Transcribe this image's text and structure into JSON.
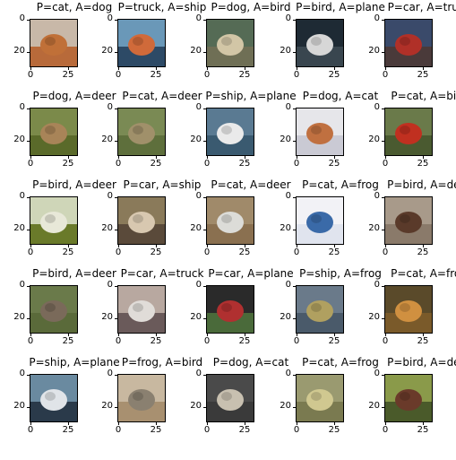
{
  "axis": {
    "yticks": [
      "0",
      "20"
    ],
    "xticks": [
      "0",
      "25"
    ]
  },
  "images": [
    {
      "title": "P=cat, A=dog",
      "sky": "#c8b8a8",
      "ground": "#b86a3a",
      "blob": "#c07038"
    },
    {
      "title": "P=truck, A=ship",
      "sky": "#6a98b8",
      "ground": "#2d4a66",
      "blob": "#d06a3a"
    },
    {
      "title": "P=dog, A=bird",
      "sky": "#556b55",
      "ground": "#6f6f55",
      "blob": "#d2c6a6"
    },
    {
      "title": "P=bird, A=plane",
      "sky": "#1e2a34",
      "ground": "#39464f",
      "blob": "#d7d7d7"
    },
    {
      "title": "P=car, A=truck",
      "sky": "#3a4a6a",
      "ground": "#4a3a3a",
      "blob": "#b03028"
    },
    {
      "title": "P=dog, A=deer",
      "sky": "#7b8a4a",
      "ground": "#5a6a2a",
      "blob": "#a88458"
    },
    {
      "title": "P=cat, A=deer",
      "sky": "#7a8a54",
      "ground": "#5e6f3c",
      "blob": "#a0906a"
    },
    {
      "title": "P=ship, A=plane",
      "sky": "#5a7a92",
      "ground": "#3a5a70",
      "blob": "#eaeaea"
    },
    {
      "title": "P=dog, A=cat",
      "sky": "#e6e6ea",
      "ground": "#cacad4",
      "blob": "#c07040"
    },
    {
      "title": "P=cat, A=bird",
      "sky": "#6a7a4a",
      "ground": "#4a5a30",
      "blob": "#c03020"
    },
    {
      "title": "P=bird, A=deer",
      "sky": "#cfd6b8",
      "ground": "#6a7a2a",
      "blob": "#e8e8d8"
    },
    {
      "title": "P=car, A=ship",
      "sky": "#8a7a5a",
      "ground": "#5a4a3a",
      "blob": "#d8c8b0"
    },
    {
      "title": "P=cat, A=deer",
      "sky": "#a08a6a",
      "ground": "#8a7050",
      "blob": "#dcdcd8"
    },
    {
      "title": "P=cat, A=frog",
      "sky": "#f2f2f6",
      "ground": "#e0e4ee",
      "blob": "#3a6aa8"
    },
    {
      "title": "P=bird, A=deer",
      "sky": "#a89a8a",
      "ground": "#8a7a6a",
      "blob": "#5a3a2a"
    },
    {
      "title": "P=bird, A=deer",
      "sky": "#6a7a4a",
      "ground": "#5a6a3a",
      "blob": "#7a6a5a"
    },
    {
      "title": "P=car, A=truck",
      "sky": "#b8a8a0",
      "ground": "#6a5a5a",
      "blob": "#e0dcd8"
    },
    {
      "title": "P=car, A=plane",
      "sky": "#2a2a2a",
      "ground": "#4a6a3a",
      "blob": "#b03030"
    },
    {
      "title": "P=ship, A=frog",
      "sky": "#6a7a8a",
      "ground": "#4a5a6a",
      "blob": "#b0a060"
    },
    {
      "title": "P=cat, A=frog",
      "sky": "#5a4a2a",
      "ground": "#7a5a2a",
      "blob": "#d09040"
    },
    {
      "title": "P=ship, A=plane",
      "sky": "#6a8aa0",
      "ground": "#2a3a4a",
      "blob": "#e0e4e8"
    },
    {
      "title": "P=frog, A=bird",
      "sky": "#c8b8a0",
      "ground": "#a89070",
      "blob": "#8a8070"
    },
    {
      "title": "P=dog, A=cat",
      "sky": "#4a4a4a",
      "ground": "#3a3a3a",
      "blob": "#c8c0b0"
    },
    {
      "title": "P=cat, A=frog",
      "sky": "#9a9a70",
      "ground": "#7a7a50",
      "blob": "#d0c890"
    },
    {
      "title": "P=bird, A=deer",
      "sky": "#8a9a4a",
      "ground": "#4a5a2a",
      "blob": "#6a3a2a"
    }
  ]
}
